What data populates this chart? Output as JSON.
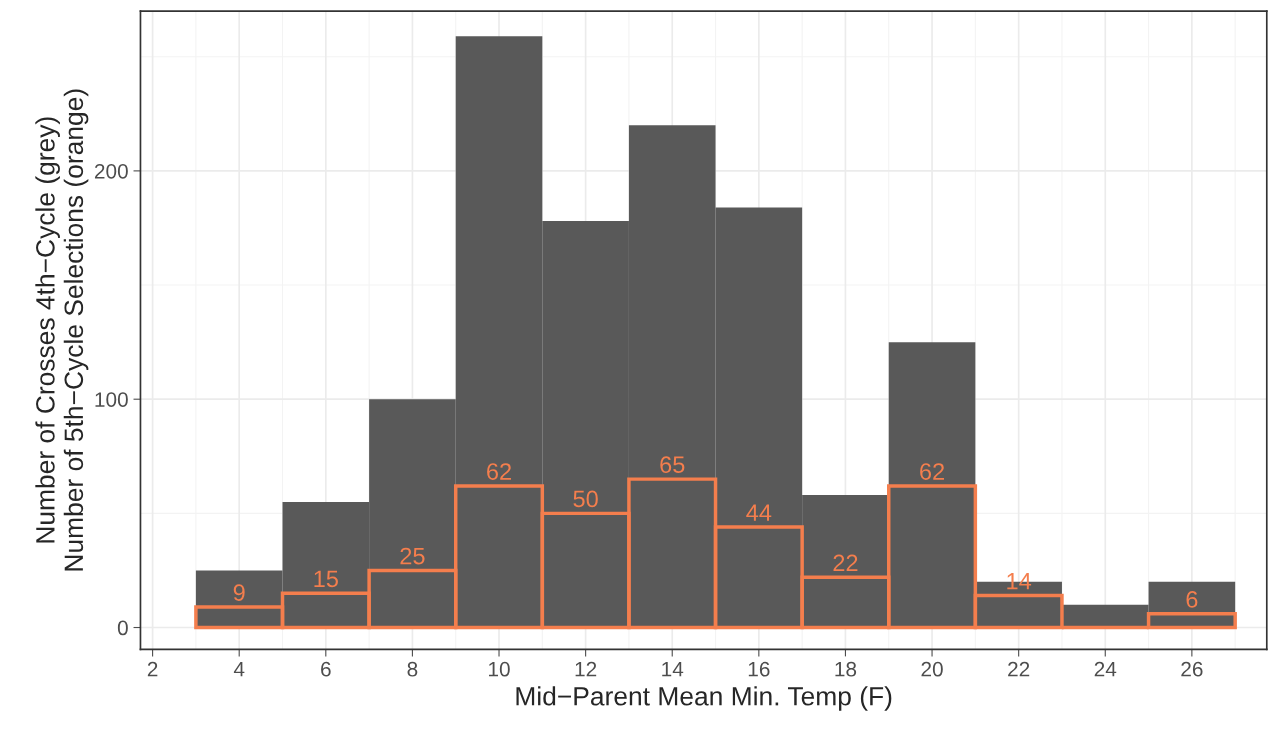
{
  "chart_data": {
    "type": "histogram",
    "xlabel": "Mid−Parent Mean Min. Temp (F)",
    "ylabel": "Number of Crosses 4th−Cycle (grey)\nNumber of 5th−Cycle Selections (orange)",
    "bins": [
      3,
      5,
      7,
      9,
      11,
      13,
      15,
      17,
      19,
      21,
      23,
      25,
      27
    ],
    "series": [
      {
        "color": "#595959",
        "values": [
          25,
          55,
          100,
          259,
          178,
          220,
          184,
          58,
          125,
          20,
          10,
          20
        ]
      },
      {
        "color": "#f47e4d",
        "values": [
          9,
          15,
          25,
          62,
          50,
          65,
          44,
          22,
          62,
          14,
          0,
          6
        ],
        "value_labels": [
          "9",
          "15",
          "25",
          "62",
          "50",
          "65",
          "44",
          "22",
          "62",
          "14",
          null,
          "6"
        ]
      }
    ],
    "xlim": [
      1.72,
      27.73
    ],
    "ylim": [
      -9.6,
      270
    ],
    "xticks": [
      2,
      4,
      6,
      8,
      10,
      12,
      14,
      16,
      18,
      20,
      22,
      24,
      26
    ],
    "yticks": [
      0,
      100,
      200
    ],
    "grid": true
  }
}
